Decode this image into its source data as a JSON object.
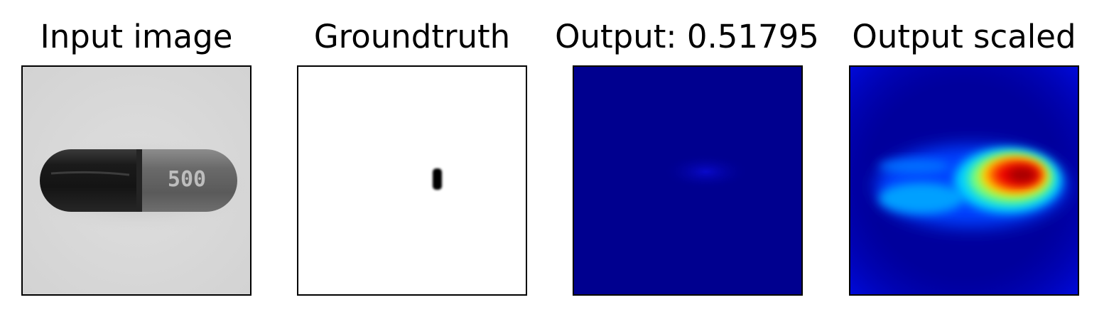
{
  "figure": {
    "panels": [
      {
        "title": "Input image",
        "content": "grayscale photo of a two-tone capsule on a light background",
        "capsule_print": "500"
      },
      {
        "title": "Groundtruth",
        "content": "binary defect mask, white background with small black blob"
      },
      {
        "title": "Output: 0.51795",
        "content": "anomaly map, nearly uniform dark blue (jet colormap)"
      },
      {
        "title": "Output scaled",
        "content": "rescaled anomaly heatmap, jet colormap, hot spot near capsule print"
      }
    ]
  },
  "colors": {
    "background": "#ffffff",
    "frame": "#000000",
    "jet_low": "#00008b",
    "jet_high": "#8b0000"
  }
}
